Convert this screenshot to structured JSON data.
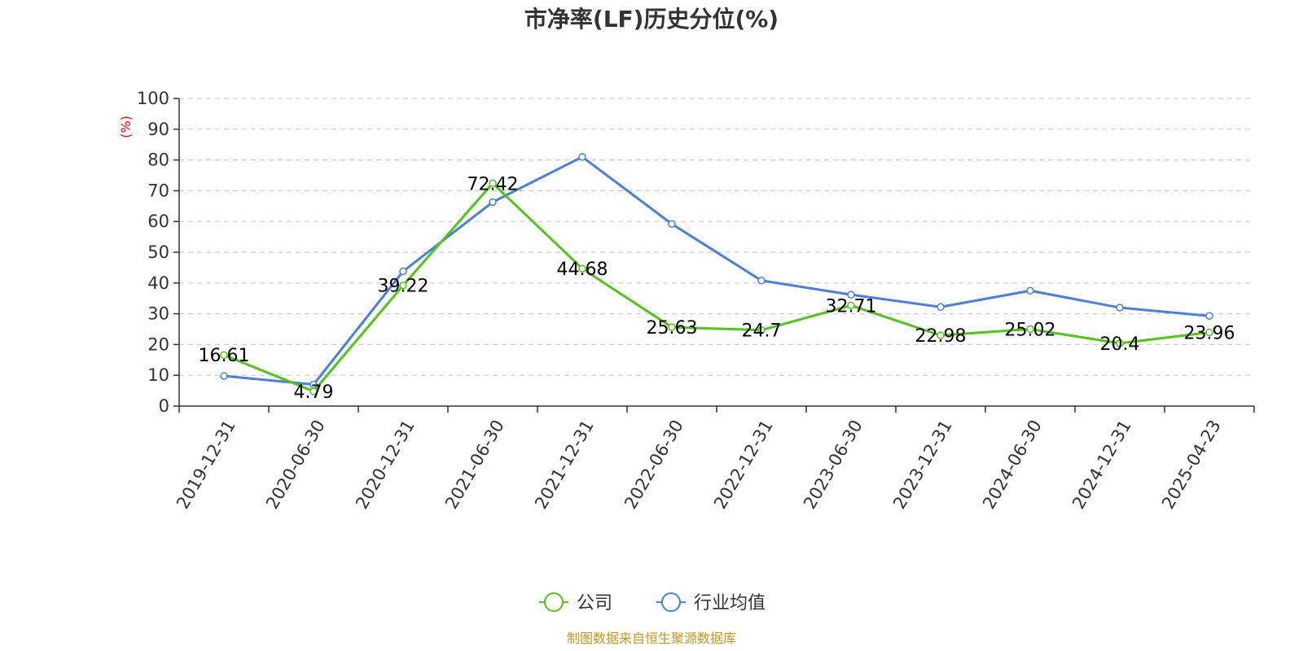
{
  "chart_data": {
    "type": "line",
    "title": "市净率(LF)历史分位(%)",
    "ylabel": "(%)",
    "categories": [
      "2019-12-31",
      "2020-06-30",
      "2020-12-31",
      "2021-06-30",
      "2021-12-31",
      "2022-06-30",
      "2022-12-31",
      "2023-06-30",
      "2023-12-31",
      "2024-06-30",
      "2024-12-31",
      "2025-04-23"
    ],
    "ylim": [
      0,
      100
    ],
    "yticks": [
      "0",
      "10",
      "20",
      "30",
      "40",
      "50",
      "60",
      "70",
      "80",
      "90",
      "100"
    ],
    "grid": true,
    "legend_position": "bottom",
    "series": [
      {
        "name": "公司",
        "color": "#52c41a",
        "values": [
          16.61,
          4.79,
          39.22,
          72.42,
          44.68,
          25.63,
          24.7,
          32.71,
          22.98,
          25.02,
          20.4,
          23.96
        ],
        "labels": [
          "16.61",
          "4.79",
          "39.22",
          "72.42",
          "44.68",
          "25.63",
          "24.7",
          "32.71",
          "22.98",
          "25.02",
          "20.4",
          "23.96"
        ]
      },
      {
        "name": "行业均值",
        "color": "#4a7fdc",
        "values": [
          9.8,
          7.0,
          43.8,
          66.3,
          81.0,
          59.2,
          40.8,
          36.2,
          32.2,
          37.5,
          32.0,
          29.3
        ]
      }
    ]
  },
  "source_text": "制图数据来自恒生聚源数据库"
}
